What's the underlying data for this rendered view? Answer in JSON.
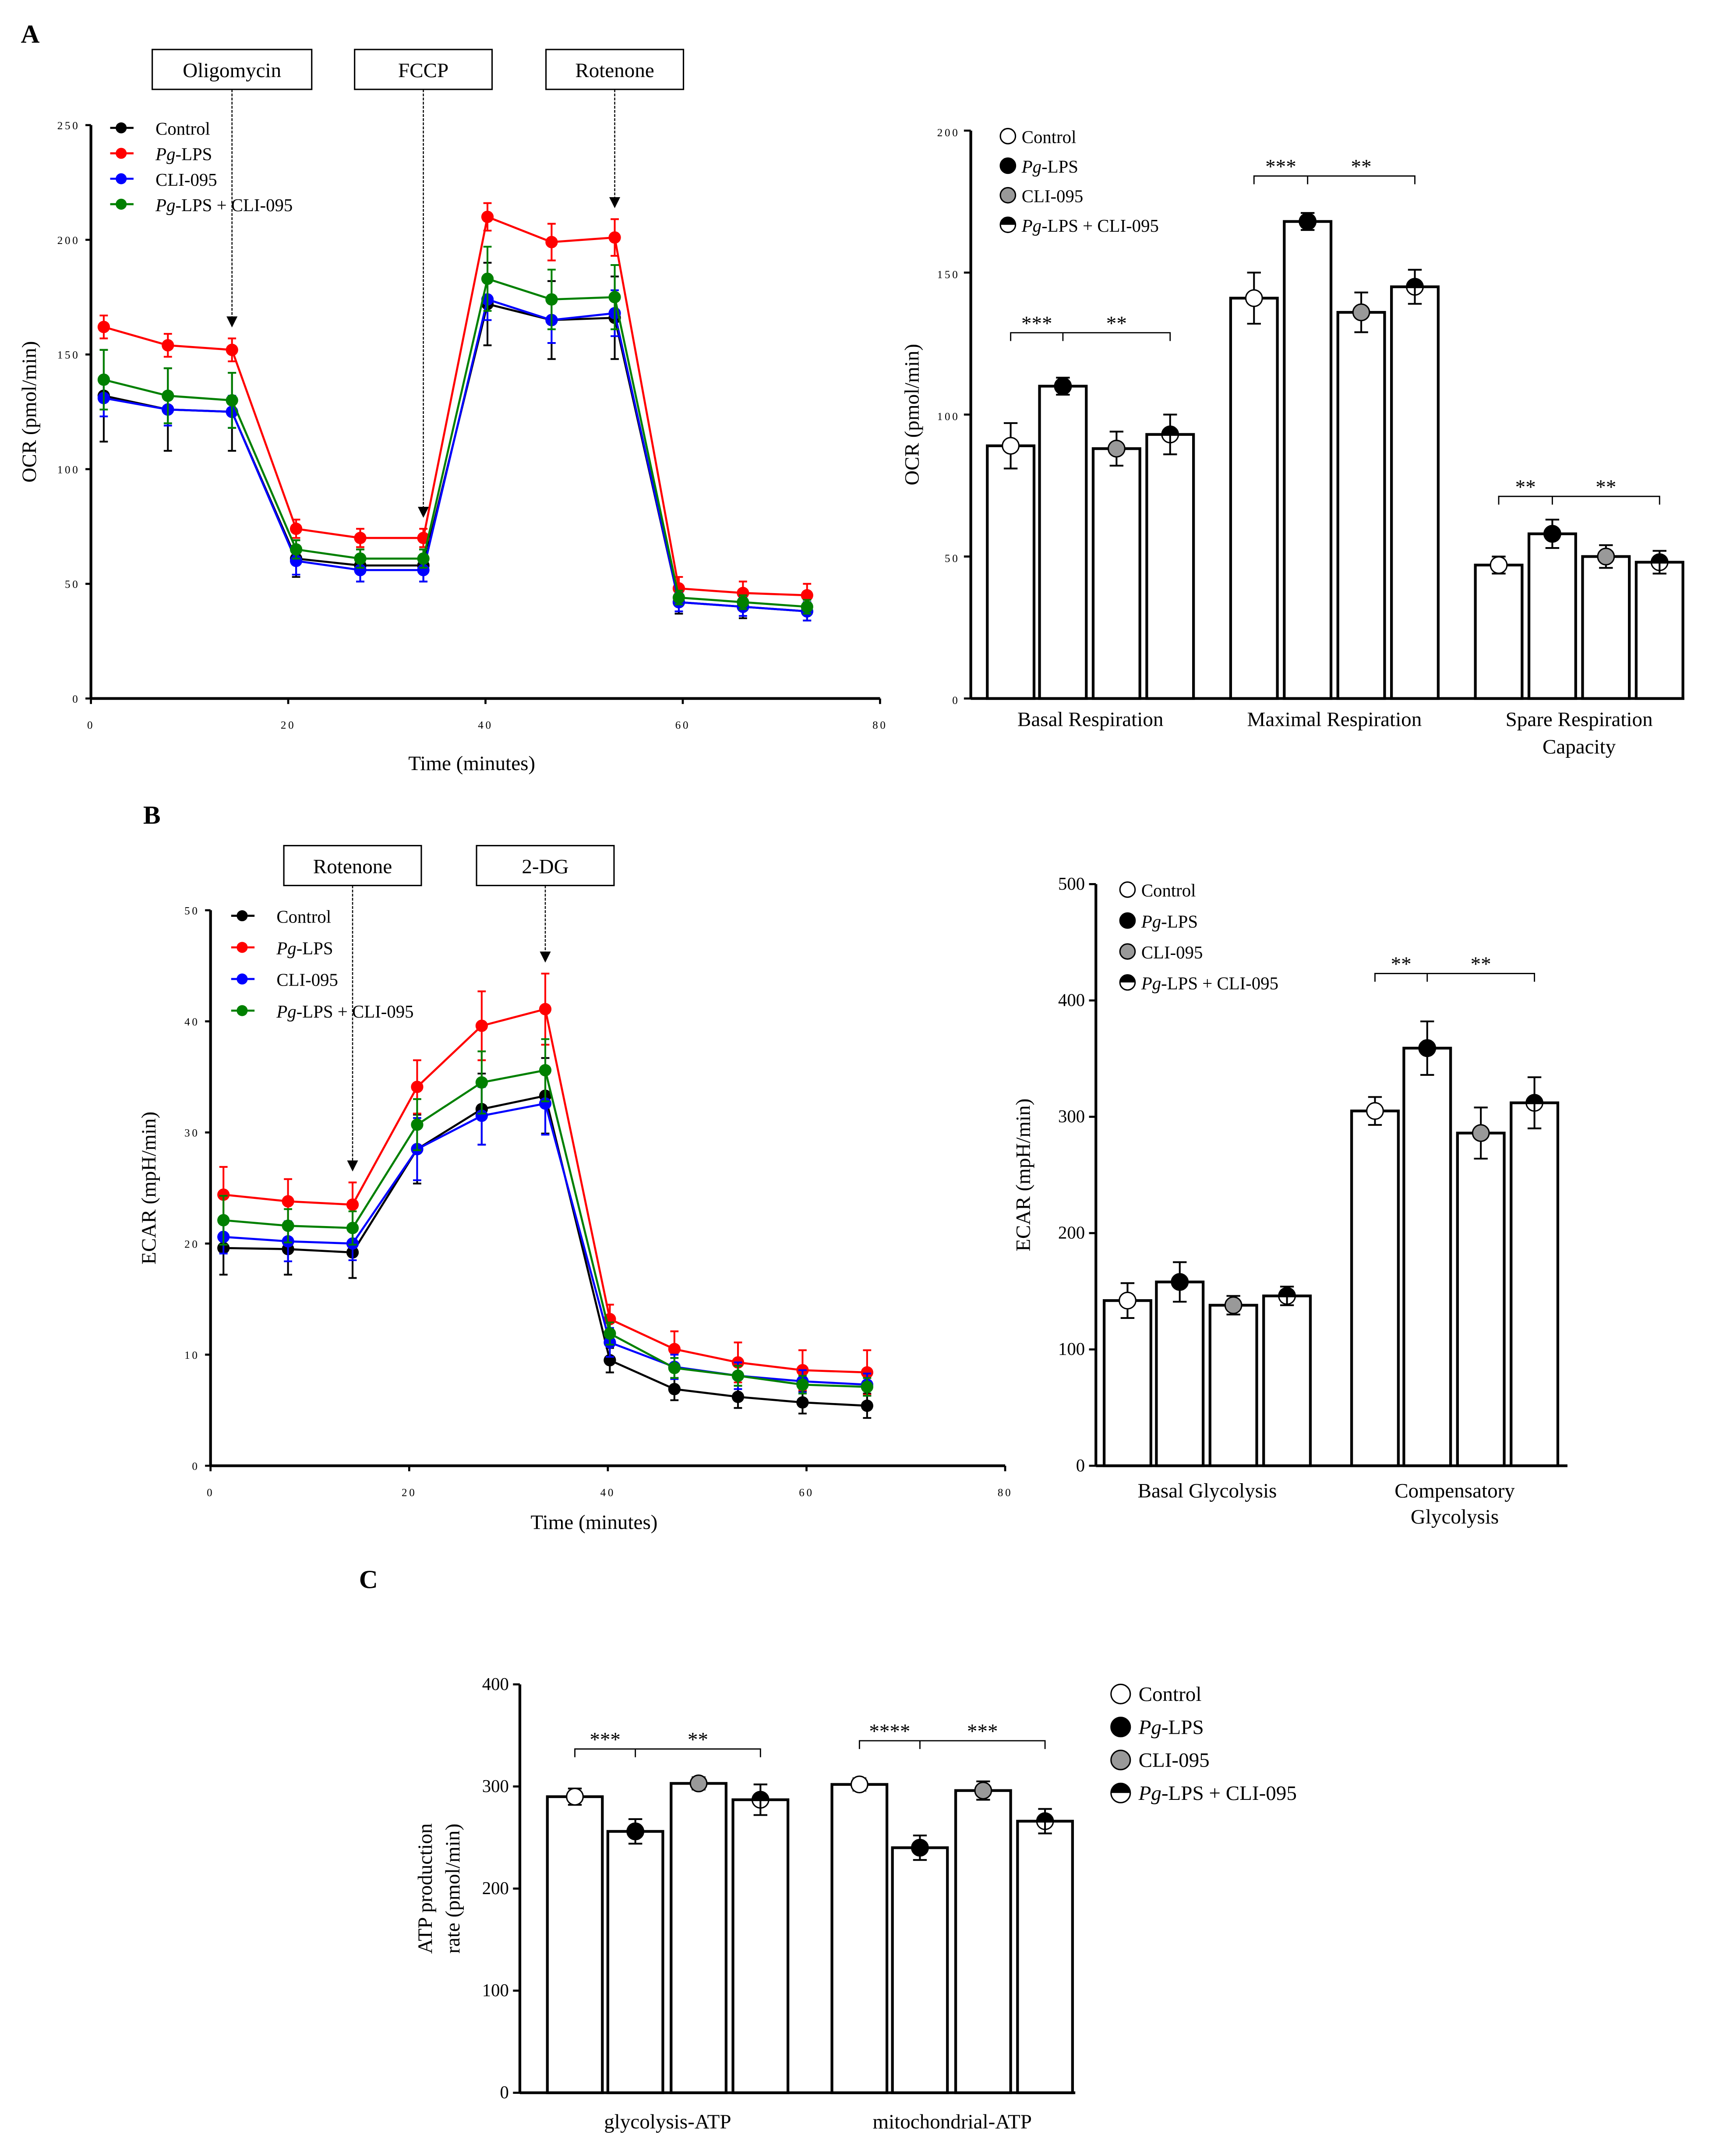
{
  "panels": {
    "a": "A",
    "b": "B",
    "c": "C"
  },
  "colors": {
    "Control": "#000000",
    "Pg-LPS": "#ff0000",
    "CLI-095": "#0000ff",
    "Pg-LPS + CLI-095": "#008000"
  },
  "chart_data": [
    {
      "id": "ocr-time",
      "type": "line",
      "xlabel": "Time (minutes)",
      "ylabel": "OCR (pmol/min)",
      "xlim": [
        0,
        80
      ],
      "ylim": [
        0,
        250
      ],
      "xticks": [
        0,
        20,
        40,
        60,
        80
      ],
      "yticks": [
        0,
        50,
        100,
        150,
        200,
        250
      ],
      "injections": [
        {
          "label": "Oligomycin",
          "x": 14.3
        },
        {
          "label": "FCCP",
          "x": 33.7
        },
        {
          "label": "Rotenone",
          "x": 53.1
        }
      ],
      "x": [
        1.3,
        7.8,
        14.3,
        20.8,
        27.3,
        33.7,
        40.2,
        46.7,
        53.1,
        59.6,
        66.1,
        72.6
      ],
      "series": [
        {
          "name": "Control",
          "values": [
            132,
            126,
            125,
            61,
            58,
            58,
            172,
            165,
            166,
            42,
            40,
            38
          ],
          "error": [
            20,
            18,
            17,
            8,
            7,
            7,
            18,
            17,
            18,
            5,
            5,
            4
          ]
        },
        {
          "name": "Pg-LPS",
          "values": [
            162,
            154,
            152,
            74,
            70,
            70,
            210,
            199,
            201,
            48,
            46,
            45
          ],
          "error": [
            5,
            5,
            5,
            4,
            4,
            4,
            6,
            8,
            8,
            5,
            5,
            5
          ]
        },
        {
          "name": "CLI-095",
          "values": [
            131,
            126,
            125,
            60,
            56,
            56,
            174,
            165,
            168,
            42,
            40,
            38
          ],
          "error": [
            8,
            7,
            7,
            6,
            5,
            5,
            9,
            10,
            10,
            4,
            4,
            4
          ]
        },
        {
          "name": "Pg-LPS + CLI-095",
          "values": [
            139,
            132,
            130,
            65,
            61,
            61,
            183,
            174,
            175,
            44,
            42,
            40
          ],
          "error": [
            13,
            12,
            12,
            4,
            4,
            4,
            14,
            13,
            14,
            3,
            3,
            3
          ]
        }
      ]
    },
    {
      "id": "ocr-bars",
      "type": "bar",
      "ylabel": "OCR (pmol/min)",
      "ylim": [
        0,
        200
      ],
      "yticks": [
        0,
        50,
        100,
        150,
        200
      ],
      "categories": [
        "Basal Respiration",
        "Maximal Respiration",
        "Spare Respiration Capacity"
      ],
      "series": [
        {
          "name": "Control",
          "values": [
            89,
            141,
            47
          ],
          "error": [
            8,
            9,
            3
          ]
        },
        {
          "name": "Pg-LPS",
          "values": [
            110,
            168,
            58
          ],
          "error": [
            3,
            3,
            5
          ]
        },
        {
          "name": "CLI-095",
          "values": [
            88,
            136,
            50
          ],
          "error": [
            6,
            7,
            4
          ]
        },
        {
          "name": "Pg-LPS + CLI-095",
          "values": [
            93,
            145,
            48
          ],
          "error": [
            7,
            6,
            4
          ]
        }
      ],
      "significance": [
        {
          "category": 0,
          "labels": [
            "***",
            "**"
          ]
        },
        {
          "category": 1,
          "labels": [
            "***",
            "**"
          ]
        },
        {
          "category": 2,
          "labels": [
            "**",
            "**"
          ]
        }
      ]
    },
    {
      "id": "ecar-time",
      "type": "line",
      "xlabel": "Time (minutes)",
      "ylabel": "ECAR (mpH/min)",
      "xlim": [
        0,
        80
      ],
      "ylim": [
        0,
        50
      ],
      "xticks": [
        0,
        20,
        40,
        60,
        80
      ],
      "yticks": [
        0,
        10,
        20,
        30,
        40,
        50
      ],
      "injections": [
        {
          "label": "Rotenone",
          "x": 14.3
        },
        {
          "label": "2-DG",
          "x": 33.7
        }
      ],
      "x": [
        1.3,
        7.8,
        14.3,
        20.8,
        27.3,
        33.7,
        40.2,
        46.7,
        53.1,
        59.6,
        66.1
      ],
      "series": [
        {
          "name": "Control",
          "values": [
            19.6,
            19.5,
            19.2,
            28.5,
            32.1,
            33.3,
            9.5,
            6.9,
            6.2,
            5.7,
            5.4
          ],
          "error": [
            2.4,
            2.3,
            2.3,
            3.1,
            3.2,
            3.4,
            1.1,
            1,
            1,
            1,
            1.1
          ]
        },
        {
          "name": "Pg-LPS",
          "values": [
            24.4,
            23.8,
            23.5,
            34.1,
            39.6,
            41.1,
            13.2,
            10.5,
            9.3,
            8.6,
            8.4
          ],
          "error": [
            2.5,
            2,
            2,
            2.4,
            3.1,
            3.2,
            1.3,
            1.6,
            1.8,
            1.8,
            2
          ]
        },
        {
          "name": "CLI-095",
          "values": [
            20.6,
            20.2,
            20.0,
            28.5,
            31.5,
            32.6,
            11.1,
            8.9,
            8.1,
            7.6,
            7.3
          ],
          "error": [
            1.5,
            1.8,
            1.5,
            2.8,
            2.6,
            2.8,
            1.3,
            1.1,
            1.2,
            1,
            1
          ]
        },
        {
          "name": "Pg-LPS + CLI-095",
          "values": [
            22.1,
            21.6,
            21.4,
            30.7,
            34.5,
            35.6,
            11.9,
            8.8,
            8.1,
            7.3,
            7.1
          ],
          "error": [
            2.2,
            1.5,
            1.5,
            2.3,
            2.8,
            2.8,
            1,
            0.9,
            0.9,
            0.8,
            0.8
          ]
        }
      ]
    },
    {
      "id": "ecar-bars",
      "type": "bar",
      "ylabel": "ECAR (mpH/min)",
      "ylim": [
        0,
        500
      ],
      "yticks": [
        0,
        100,
        200,
        300,
        400,
        500
      ],
      "categories": [
        "Basal Glycolysis",
        "Compensatory Glycolysis"
      ],
      "series": [
        {
          "name": "Control",
          "values": [
            142,
            305
          ],
          "error": [
            15,
            12
          ]
        },
        {
          "name": "Pg-LPS",
          "values": [
            158,
            359
          ],
          "error": [
            17,
            23
          ]
        },
        {
          "name": "CLI-095",
          "values": [
            138,
            286
          ],
          "error": [
            8,
            22
          ]
        },
        {
          "name": "Pg-LPS + CLI-095",
          "values": [
            146,
            312
          ],
          "error": [
            8,
            22
          ]
        }
      ],
      "significance": [
        {
          "category": 1,
          "labels": [
            "**",
            "**"
          ]
        }
      ]
    },
    {
      "id": "atp-bars",
      "type": "bar",
      "ylabel": "ATP production rate (pmol/min)",
      "ylim": [
        0,
        400
      ],
      "yticks": [
        0,
        100,
        200,
        300,
        400
      ],
      "categories": [
        "glycolysis-ATP",
        "mitochondrial-ATP"
      ],
      "series": [
        {
          "name": "Control",
          "values": [
            290,
            302
          ],
          "error": [
            8,
            6
          ]
        },
        {
          "name": "Pg-LPS",
          "values": [
            256,
            240
          ],
          "error": [
            12,
            12
          ]
        },
        {
          "name": "CLI-095",
          "values": [
            303,
            296
          ],
          "error": [
            6,
            9
          ]
        },
        {
          "name": "Pg-LPS + CLI-095",
          "values": [
            287,
            266
          ],
          "error": [
            15,
            12
          ]
        }
      ],
      "significance": [
        {
          "category": 0,
          "labels": [
            "***",
            "**"
          ]
        },
        {
          "category": 1,
          "labels": [
            "****",
            "***"
          ]
        }
      ]
    }
  ]
}
